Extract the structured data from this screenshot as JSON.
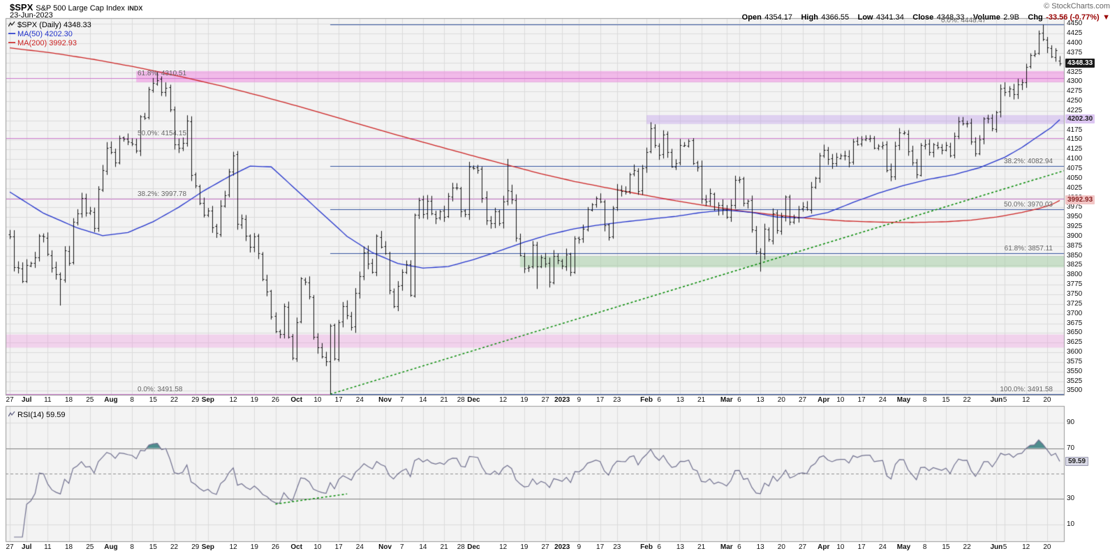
{
  "header": {
    "symbol": "$SPX",
    "name": "S&P 500 Large Cap Index",
    "exchange": "INDX",
    "date": "23-Jun-2023",
    "copyright": "© StockCharts.com",
    "quote": {
      "open_label": "Open",
      "open": "4354.17",
      "high_label": "High",
      "high": "4366.55",
      "low_label": "Low",
      "low": "4341.34",
      "close_label": "Close",
      "close": "4348.33",
      "volume_label": "Volume",
      "volume": "2.9B",
      "chg_label": "Chg",
      "chg": "-33.56 (-0.77%)",
      "chg_dir": "▼"
    }
  },
  "legend": {
    "main": "$SPX (Daily) 4348.33",
    "ma50": "MA(50) 4202.30",
    "ma200": "MA(200) 3992.93"
  },
  "axis": {
    "price_min": 3500,
    "price_max": 4450,
    "price_step": 25,
    "plot_price_min": 3490,
    "plot_price_max": 4465,
    "badges": [
      {
        "text": "4348.33",
        "price": 4348.33,
        "bg": "#1a1a1a",
        "fg": "#ffffff"
      },
      {
        "text": "4202.30",
        "price": 4202.3,
        "bg": "#dcc6f2",
        "fg": "#222222"
      },
      {
        "text": "3992.93",
        "price": 3992.93,
        "bg": "#f2c6c6",
        "fg": "#882222"
      }
    ]
  },
  "rsi": {
    "legend": "RSI(14) 59.59",
    "value_badge": "59.59",
    "badge_bg": "#d9d9e6",
    "badge_fg": "#222222",
    "ticks": [
      90,
      70,
      30,
      10
    ],
    "overbought": 70,
    "oversold": 30,
    "midline": 50,
    "line_color": "#70708f",
    "overbought_fill": "#4e8d8d",
    "trendline": {
      "d1": 63,
      "v1": 26,
      "d2": 80,
      "v2": 34,
      "color": "#008800"
    }
  },
  "fib1": {
    "color": "#cc77cc",
    "levels": [
      {
        "label": "61.8%: 4310.51",
        "price": 4310.51
      },
      {
        "label": "50.0%: 4154.15",
        "price": 4154.15
      },
      {
        "label": "38.2%: 3997.78",
        "price": 3997.78
      },
      {
        "label": "0.0%: 3491.58",
        "price": 3491.58
      }
    ]
  },
  "fib2": {
    "color": "#33539f",
    "start_day": 76,
    "levels": [
      {
        "label": "0.0%: 4448.47",
        "price": 4448.47,
        "x": 1348
      },
      {
        "label": "38.2%: 4082.94",
        "price": 4082.94
      },
      {
        "label": "50.0%: 3970.03",
        "price": 3970.03
      },
      {
        "label": "61.8%: 3857.11",
        "price": 3857.11
      },
      {
        "label": "100.0%: 3491.58",
        "price": 3491.58
      }
    ]
  },
  "bands": [
    {
      "from": 4299,
      "to": 4328,
      "start_day": 30,
      "color": "rgba(238,138,224,0.55)"
    },
    {
      "from": 3612,
      "to": 3646,
      "start_day": -1,
      "color": "rgba(238,150,224,0.35)"
    },
    {
      "from": 4191,
      "to": 4214,
      "start_day": 151,
      "color": "rgba(190,155,235,0.40)"
    },
    {
      "from": 3820,
      "to": 3849,
      "start_day": 121,
      "color": "rgba(150,200,150,0.45)"
    }
  ],
  "trendline": {
    "d1": 76,
    "p1": 3491.58,
    "d2": 250,
    "p2": 4070,
    "color": "#008800"
  },
  "x_labels": [
    {
      "t": "27",
      "d": 0
    },
    {
      "t": "Jul",
      "d": 4,
      "b": 1
    },
    {
      "t": "11",
      "d": 9
    },
    {
      "t": "18",
      "d": 14
    },
    {
      "t": "25",
      "d": 19
    },
    {
      "t": "Aug",
      "d": 24,
      "b": 1
    },
    {
      "t": "8",
      "d": 29
    },
    {
      "t": "15",
      "d": 34
    },
    {
      "t": "22",
      "d": 39
    },
    {
      "t": "29",
      "d": 44
    },
    {
      "t": "Sep",
      "d": 47,
      "b": 1
    },
    {
      "t": "12",
      "d": 53
    },
    {
      "t": "19",
      "d": 58
    },
    {
      "t": "26",
      "d": 63
    },
    {
      "t": "Oct",
      "d": 68,
      "b": 1
    },
    {
      "t": "10",
      "d": 73
    },
    {
      "t": "17",
      "d": 78
    },
    {
      "t": "24",
      "d": 83
    },
    {
      "t": "Nov",
      "d": 89,
      "b": 1
    },
    {
      "t": "7",
      "d": 93
    },
    {
      "t": "14",
      "d": 98
    },
    {
      "t": "21",
      "d": 103
    },
    {
      "t": "28",
      "d": 107
    },
    {
      "t": "Dec",
      "d": 110,
      "b": 1
    },
    {
      "t": "12",
      "d": 117
    },
    {
      "t": "19",
      "d": 122
    },
    {
      "t": "27",
      "d": 127
    },
    {
      "t": "2023",
      "d": 131,
      "b": 1
    },
    {
      "t": "9",
      "d": 135
    },
    {
      "t": "17",
      "d": 140
    },
    {
      "t": "23",
      "d": 144
    },
    {
      "t": "Feb",
      "d": 151,
      "b": 1
    },
    {
      "t": "6",
      "d": 154
    },
    {
      "t": "13",
      "d": 159
    },
    {
      "t": "21",
      "d": 164
    },
    {
      "t": "Mar",
      "d": 170,
      "b": 1
    },
    {
      "t": "6",
      "d": 173
    },
    {
      "t": "13",
      "d": 178
    },
    {
      "t": "20",
      "d": 183
    },
    {
      "t": "27",
      "d": 188
    },
    {
      "t": "Apr",
      "d": 193,
      "b": 1
    },
    {
      "t": "10",
      "d": 197
    },
    {
      "t": "17",
      "d": 202
    },
    {
      "t": "24",
      "d": 207
    },
    {
      "t": "May",
      "d": 212,
      "b": 1
    },
    {
      "t": "8",
      "d": 217
    },
    {
      "t": "15",
      "d": 222
    },
    {
      "t": "22",
      "d": 227
    },
    {
      "t": "Jun",
      "d": 234,
      "b": 1
    },
    {
      "t": "5",
      "d": 236
    },
    {
      "t": "12",
      "d": 241
    },
    {
      "t": "20",
      "d": 246
    }
  ],
  "chart_data": {
    "type": "ohlc",
    "bar_interval": "daily",
    "title": "$SPX (Daily)",
    "ylim": [
      3500,
      4450
    ],
    "bar_color": "#111111",
    "close": [
      3900,
      3821,
      3819,
      3785,
      3825,
      3831,
      3845,
      3902,
      3899,
      3854,
      3819,
      3802,
      3790,
      3863,
      3831,
      3937,
      3960,
      3999,
      3962,
      3966,
      3921,
      4023,
      4072,
      4130,
      4119,
      4091,
      4155,
      4152,
      4145,
      4140,
      4122,
      4210,
      4207,
      4280,
      4297,
      4305,
      4274,
      4284,
      4228,
      4138,
      4129,
      4141,
      4199,
      4058,
      4031,
      3986,
      3955,
      3967,
      3924,
      3908,
      3980,
      4006,
      4067,
      4110,
      3933,
      3946,
      3901,
      3873,
      3900,
      3856,
      3790,
      3758,
      3693,
      3655,
      3647,
      3719,
      3640,
      3586,
      3678,
      3791,
      3783,
      3744,
      3640,
      3612,
      3589,
      3577,
      3669,
      3583,
      3678,
      3720,
      3695,
      3666,
      3753,
      3797,
      3859,
      3830,
      3807,
      3901,
      3872,
      3856,
      3760,
      3720,
      3771,
      3807,
      3828,
      3748,
      3956,
      3993,
      3957,
      3992,
      3959,
      3947,
      3965,
      3950,
      4004,
      4027,
      4026,
      3964,
      3958,
      4080,
      4077,
      4072,
      3999,
      3941,
      3934,
      3964,
      3934,
      3991,
      4019,
      3995,
      3896,
      3852,
      3817,
      3821,
      3878,
      3822,
      3845,
      3829,
      3783,
      3849,
      3839,
      3824,
      3853,
      3808,
      3895,
      3892,
      3919,
      3970,
      3983,
      3999,
      3991,
      3929,
      3898,
      3973,
      4020,
      4017,
      4016,
      4060,
      4071,
      4018,
      4077,
      4119,
      4180,
      4136,
      4111,
      4164,
      4118,
      4081,
      4090,
      4137,
      4136,
      4148,
      4090,
      4079,
      3997,
      3991,
      4012,
      3970,
      3982,
      3970,
      3951,
      3981,
      4046,
      4048,
      3986,
      3992,
      3918,
      3862,
      3856,
      3919,
      3892,
      3960,
      3917,
      3952,
      4003,
      3937,
      3949,
      3971,
      3977,
      3971,
      4028,
      4051,
      4109,
      4124,
      4100,
      4090,
      4105,
      4109,
      4109,
      4092,
      4146,
      4138,
      4151,
      4155,
      4155,
      4130,
      4134,
      4137,
      4072,
      4056,
      4135,
      4169,
      4168,
      4120,
      4091,
      4061,
      4136,
      4138,
      4119,
      4138,
      4131,
      4124,
      4136,
      4110,
      4159,
      4198,
      4192,
      4193,
      4145,
      4115,
      4151,
      4205,
      4205,
      4180,
      4221,
      4282,
      4274,
      4283,
      4268,
      4294,
      4299,
      4339,
      4369,
      4373,
      4426,
      4410,
      4389,
      4366,
      4382,
      4348.33
    ],
    "wick_overrides": {
      "12": {
        "low": 3721
      },
      "35": {
        "high": 4325.28
      },
      "76": {
        "low": 3491.58
      },
      "118": {
        "high": 4100.51
      },
      "125": {
        "low": 3764
      },
      "152": {
        "high": 4195.44
      },
      "178": {
        "low": 3808.86
      },
      "245": {
        "high": 4448.47
      },
      "249": {
        "open": 4354.17,
        "high": 4366.55,
        "low": 4341.34
      }
    },
    "ma50": {
      "label": "MA(50)",
      "color": "#2233cc",
      "last": 4202.3,
      "anchors": [
        [
          0,
          4015
        ],
        [
          8,
          3960
        ],
        [
          16,
          3922
        ],
        [
          22,
          3902
        ],
        [
          28,
          3910
        ],
        [
          34,
          3938
        ],
        [
          40,
          3975
        ],
        [
          46,
          4018
        ],
        [
          52,
          4055
        ],
        [
          57,
          4082
        ],
        [
          62,
          4080
        ],
        [
          68,
          4020
        ],
        [
          74,
          3960
        ],
        [
          80,
          3900
        ],
        [
          86,
          3858
        ],
        [
          92,
          3830
        ],
        [
          98,
          3818
        ],
        [
          104,
          3822
        ],
        [
          110,
          3840
        ],
        [
          116,
          3862
        ],
        [
          122,
          3885
        ],
        [
          128,
          3905
        ],
        [
          134,
          3920
        ],
        [
          140,
          3930
        ],
        [
          146,
          3938
        ],
        [
          152,
          3945
        ],
        [
          158,
          3952
        ],
        [
          164,
          3962
        ],
        [
          170,
          3968
        ],
        [
          176,
          3962
        ],
        [
          182,
          3950
        ],
        [
          188,
          3948
        ],
        [
          194,
          3962
        ],
        [
          200,
          3988
        ],
        [
          206,
          4012
        ],
        [
          212,
          4032
        ],
        [
          218,
          4048
        ],
        [
          224,
          4060
        ],
        [
          230,
          4078
        ],
        [
          236,
          4105
        ],
        [
          240,
          4130
        ],
        [
          244,
          4160
        ],
        [
          247,
          4182
        ],
        [
          249,
          4202.3
        ]
      ]
    },
    "ma200": {
      "label": "MA(200)",
      "color": "#cc2222",
      "last": 3992.93,
      "anchors": [
        [
          0,
          4388
        ],
        [
          10,
          4375
        ],
        [
          20,
          4358
        ],
        [
          30,
          4338
        ],
        [
          40,
          4315
        ],
        [
          50,
          4290
        ],
        [
          60,
          4262
        ],
        [
          70,
          4232
        ],
        [
          80,
          4200
        ],
        [
          90,
          4168
        ],
        [
          100,
          4138
        ],
        [
          110,
          4108
        ],
        [
          118,
          4085
        ],
        [
          126,
          4062
        ],
        [
          134,
          4042
        ],
        [
          142,
          4025
        ],
        [
          150,
          4008
        ],
        [
          158,
          3992
        ],
        [
          166,
          3978
        ],
        [
          174,
          3965
        ],
        [
          182,
          3955
        ],
        [
          190,
          3946
        ],
        [
          198,
          3940
        ],
        [
          206,
          3937
        ],
        [
          214,
          3936
        ],
        [
          222,
          3938
        ],
        [
          228,
          3942
        ],
        [
          234,
          3950
        ],
        [
          240,
          3962
        ],
        [
          244,
          3972
        ],
        [
          247,
          3982
        ],
        [
          249,
          3992.93
        ]
      ]
    },
    "rsi": {
      "period": 14,
      "last": 59.59
    }
  }
}
